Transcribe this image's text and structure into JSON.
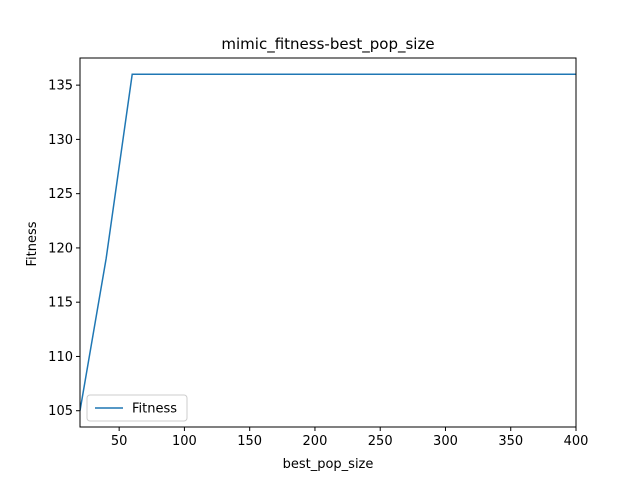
{
  "chart_data": {
    "type": "line",
    "title": "mimic_fitness-best_pop_size",
    "xlabel": "best_pop_size",
    "ylabel": "Fitness",
    "xlim": [
      20,
      400
    ],
    "ylim": [
      103.5,
      137.5
    ],
    "xticks": [
      50,
      100,
      150,
      200,
      250,
      300,
      350,
      400
    ],
    "yticks": [
      105,
      110,
      115,
      120,
      125,
      130,
      135
    ],
    "grid": false,
    "legend_position": "lower-left",
    "series": [
      {
        "name": "Fitness",
        "color": "#1f77b4",
        "x": [
          20,
          40,
          60,
          80,
          100,
          120,
          140,
          160,
          180,
          200,
          220,
          240,
          260,
          280,
          300,
          320,
          340,
          360,
          380,
          400
        ],
        "y": [
          105,
          119,
          136,
          136,
          136,
          136,
          136,
          136,
          136,
          136,
          136,
          136,
          136,
          136,
          136,
          136,
          136,
          136,
          136,
          136
        ]
      }
    ]
  }
}
